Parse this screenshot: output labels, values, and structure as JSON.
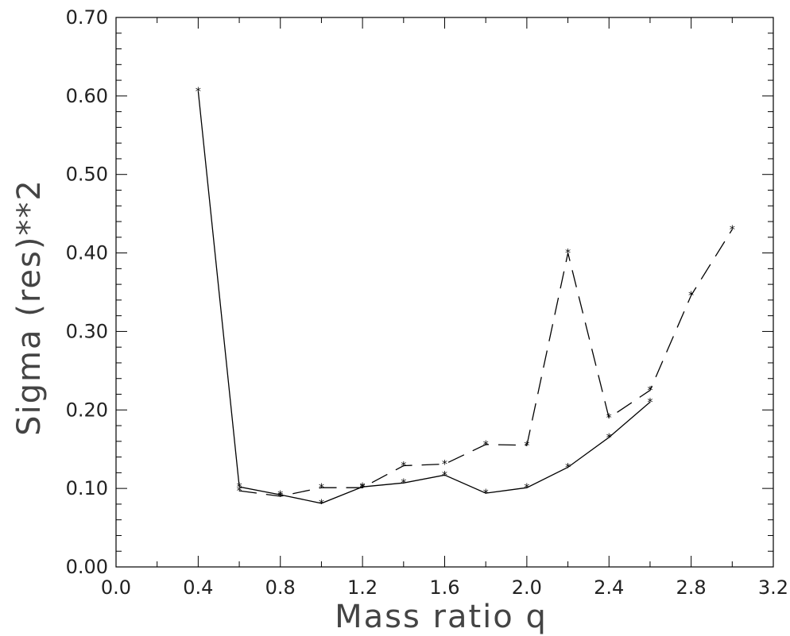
{
  "chart_data": {
    "type": "line",
    "xlabel": "Mass ratio q",
    "ylabel": "Sigma (res)**2",
    "xlim": [
      0.0,
      3.2
    ],
    "ylim": [
      0.0,
      0.7
    ],
    "x_ticks": [
      "0.0",
      "0.4",
      "0.8",
      "1.2",
      "1.6",
      "2.0",
      "2.4",
      "2.8",
      "3.2"
    ],
    "y_ticks": [
      "0.00",
      "0.10",
      "0.20",
      "0.30",
      "0.40",
      "0.50",
      "0.60",
      "0.70"
    ],
    "grid": false,
    "marker": "*",
    "series": [
      {
        "style": "solid",
        "color": "#000000",
        "x": [
          0.4,
          0.6,
          0.8,
          1.0,
          1.2,
          1.4,
          1.6,
          1.8,
          2.0,
          2.2,
          2.4,
          2.6
        ],
        "values": [
          0.606,
          0.102,
          0.092,
          0.081,
          0.102,
          0.107,
          0.117,
          0.094,
          0.101,
          0.127,
          0.165,
          0.21
        ]
      },
      {
        "style": "dashed",
        "color": "#000000",
        "x": [
          0.6,
          0.8,
          1.0,
          1.2,
          1.4,
          1.6,
          1.8,
          2.0,
          2.2,
          2.4,
          2.6,
          2.8,
          3.0
        ],
        "values": [
          0.097,
          0.09,
          0.101,
          0.101,
          0.129,
          0.131,
          0.156,
          0.155,
          0.4,
          0.19,
          0.225,
          0.346,
          0.43
        ]
      }
    ]
  }
}
